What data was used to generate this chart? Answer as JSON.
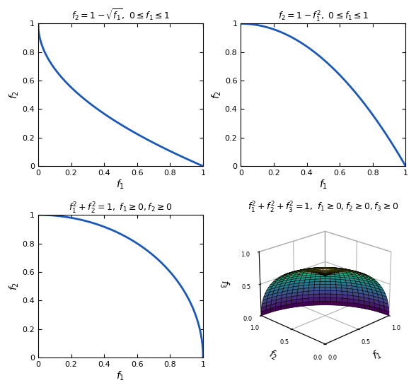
{
  "title1": "$f_2 = 1 - \\sqrt{f_1},\\ 0 \\leq f_1 \\leq 1$",
  "title2": "$f_2 = 1 - f_1^2,\\ 0 \\leq f_1 \\leq 1$",
  "title3": "$f_1^2 + f_2^2 = 1,\\ f_1 \\geq 0, f_2 \\geq 0$",
  "title4": "$f_1^2 + f_2^2 + f_3^2 = 1,\\ f_1 \\geq 0, f_2 \\geq 0, f_3 \\geq 0$",
  "xlabel": "$f_1$",
  "ylabel1": "$f_2$",
  "ylabel2": "$f_2$",
  "ylabel3": "$f_2$",
  "ylabel4": "$f_3$",
  "xlabel4_f2": "$f_2$",
  "xlabel4_f1": "$f_1$",
  "line_color": "#1957b8",
  "line_width": 2.0,
  "bg_color": "#ffffff",
  "tick_labelsize": 8,
  "title_fontsize": 9,
  "axis_labelsize": 10,
  "n_points": 500,
  "n_surf": 25,
  "surf_elev": 22,
  "surf_azim": 225
}
